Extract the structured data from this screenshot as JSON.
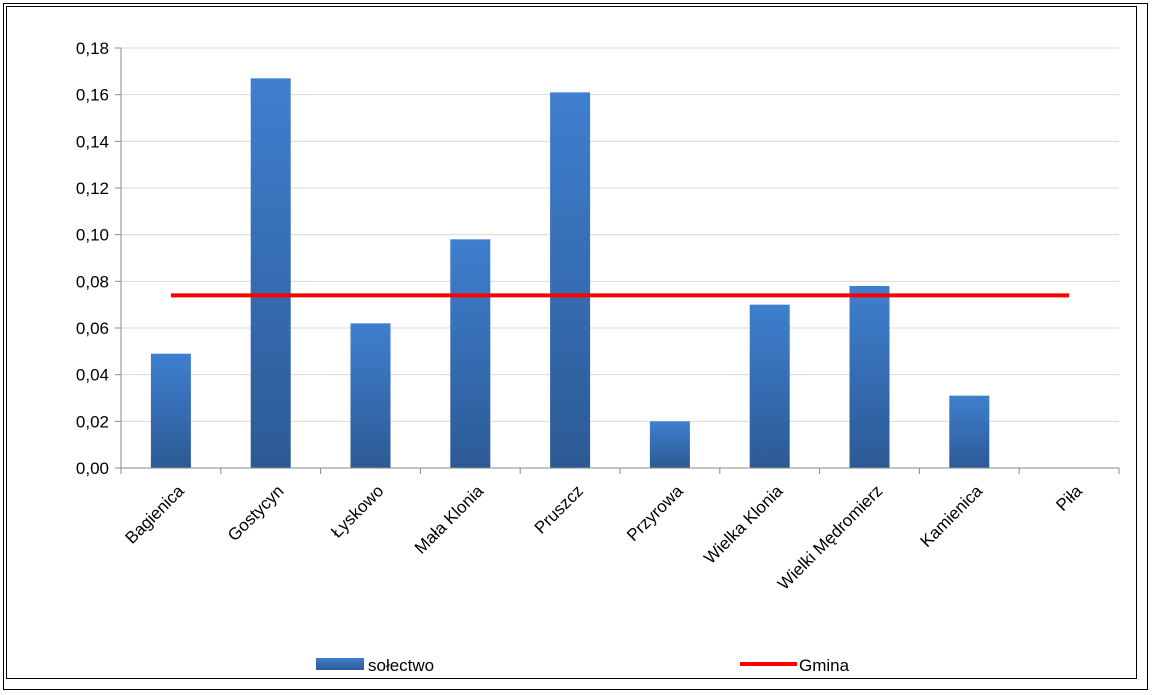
{
  "chart_data": {
    "type": "bar",
    "categories": [
      "Bagienica",
      "Gostycyn",
      "Łyskowo",
      "Mała Klonia",
      "Pruszcz",
      "Przyrowa",
      "Wielka Klonia",
      "Wielki Mędromierz",
      "Kamienica",
      "Piła"
    ],
    "series": [
      {
        "name": "sołectwo",
        "kind": "bar",
        "color": "#3a73bf",
        "values": [
          0.049,
          0.167,
          0.062,
          0.098,
          0.161,
          0.02,
          0.07,
          0.078,
          0.031,
          0.0
        ]
      },
      {
        "name": "Gmina",
        "kind": "line",
        "color": "#ff0000",
        "values": [
          0.074,
          0.074,
          0.074,
          0.074,
          0.074,
          0.074,
          0.074,
          0.074,
          0.074,
          0.074
        ]
      }
    ],
    "ylim": [
      0,
      0.18
    ],
    "yticks": [
      "0,00",
      "0,02",
      "0,04",
      "0,06",
      "0,08",
      "0,10",
      "0,12",
      "0,14",
      "0,16",
      "0,18"
    ],
    "ytick_values": [
      0,
      0.02,
      0.04,
      0.06,
      0.08,
      0.1,
      0.12,
      0.14,
      0.16,
      0.18
    ],
    "grid": true,
    "legend_position": "bottom"
  }
}
